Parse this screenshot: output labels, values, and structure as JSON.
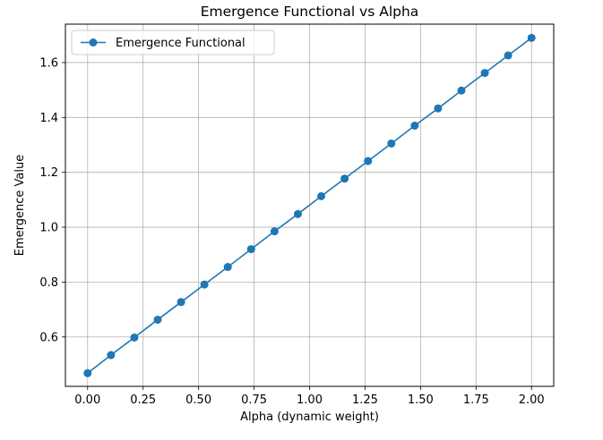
{
  "chart_data": {
    "type": "line",
    "title": "Emergence Functional vs Alpha",
    "xlabel": "Alpha (dynamic weight)",
    "ylabel": "Emergence Value",
    "xlim": [
      -0.1,
      2.1
    ],
    "ylim": [
      0.42,
      1.74
    ],
    "xticks": [
      "0.00",
      "0.25",
      "0.50",
      "0.75",
      "1.00",
      "1.25",
      "1.50",
      "1.75",
      "2.00"
    ],
    "yticks": [
      "0.6",
      "0.8",
      "1.0",
      "1.2",
      "1.4",
      "1.6"
    ],
    "grid": true,
    "legend_position": "top-left",
    "colors": {
      "series": "#1f77b4",
      "grid": "#b0b0b0",
      "axes": "#000000"
    },
    "series": [
      {
        "name": "Emergence Functional",
        "marker": "circle",
        "x": [
          0.0,
          0.1053,
          0.2105,
          0.3158,
          0.4211,
          0.5263,
          0.6316,
          0.7368,
          0.8421,
          0.9474,
          1.0526,
          1.1579,
          1.2632,
          1.3684,
          1.4737,
          1.5789,
          1.6842,
          1.7895,
          1.8947,
          2.0
        ],
        "y": [
          0.468,
          0.534,
          0.598,
          0.663,
          0.727,
          0.791,
          0.855,
          0.92,
          0.985,
          1.048,
          1.113,
          1.177,
          1.241,
          1.305,
          1.37,
          1.433,
          1.498,
          1.562,
          1.626,
          1.69
        ]
      }
    ]
  }
}
